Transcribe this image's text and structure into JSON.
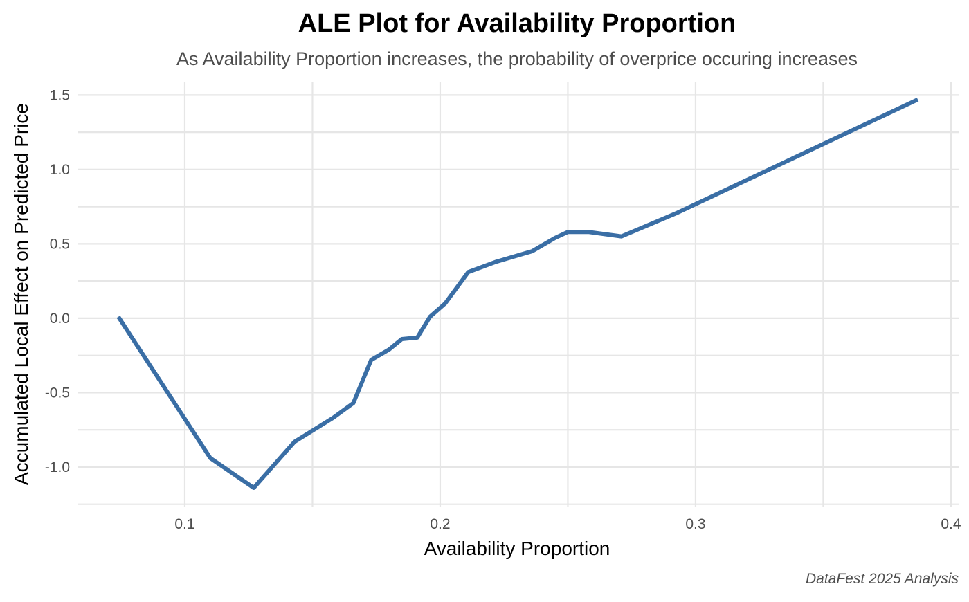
{
  "chart_data": {
    "type": "line",
    "title": "ALE Plot for Availability Proportion",
    "subtitle": "As Availability Proportion increases, the probability of overprice occuring increases",
    "xlabel": "Availability Proportion",
    "ylabel": "Accumulated Local Effect on Predicted Price",
    "caption": "DataFest 2025 Analysis",
    "xlim": [
      0.058,
      0.403
    ],
    "ylim": [
      -1.27,
      1.59
    ],
    "x_ticks": [
      0.1,
      0.2,
      0.3,
      0.4
    ],
    "x_tick_labels": [
      "0.1",
      "0.2",
      "0.3",
      "0.4"
    ],
    "y_ticks": [
      -1.0,
      -0.5,
      0.0,
      0.5,
      1.0,
      1.5
    ],
    "y_tick_labels": [
      "-1.0",
      "-0.5",
      "0.0",
      "0.5",
      "1.0",
      "1.5"
    ],
    "grid": true,
    "line_color": "#3a6ea5",
    "series": [
      {
        "x": [
          0.074,
          0.11,
          0.127,
          0.143,
          0.158,
          0.166,
          0.173,
          0.18,
          0.185,
          0.191,
          0.196,
          0.202,
          0.211,
          0.222,
          0.236,
          0.245,
          0.25,
          0.258,
          0.271,
          0.293,
          0.387
        ],
        "y": [
          0.01,
          -0.94,
          -1.14,
          -0.83,
          -0.67,
          -0.57,
          -0.28,
          -0.21,
          -0.14,
          -0.13,
          0.01,
          0.1,
          0.31,
          0.38,
          0.45,
          0.54,
          0.58,
          0.58,
          0.55,
          0.71,
          1.47
        ]
      }
    ]
  }
}
